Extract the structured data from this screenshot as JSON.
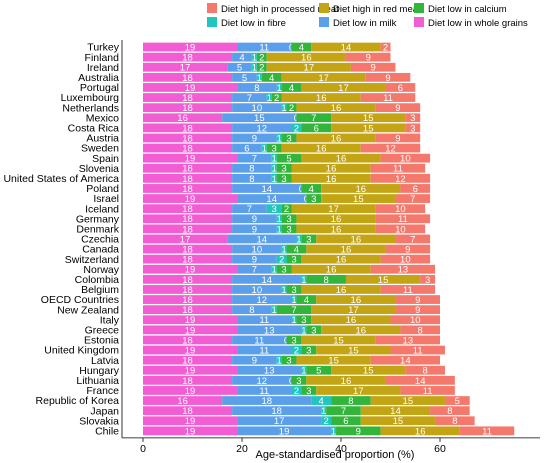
{
  "chart_data": {
    "type": "bar",
    "orientation": "horizontal",
    "stacked": true,
    "xlabel": "Age-standardised proportion (%)",
    "ylabel": "",
    "xlim": [
      0,
      78
    ],
    "xticks": [
      0,
      20,
      40,
      60
    ],
    "grid": false,
    "legend_position": "top",
    "categories": [
      "Turkey",
      "Finland",
      "Ireland",
      "Australia",
      "Portugal",
      "Luxembourg",
      "Netherlands",
      "Mexico",
      "Costa Rica",
      "Austria",
      "Sweden",
      "Spain",
      "Slovenia",
      "United States of America",
      "Poland",
      "Israel",
      "Iceland",
      "Germany",
      "Denmark",
      "Czechia",
      "Canada",
      "Switzerland",
      "Norway",
      "Colombia",
      "Belgium",
      "OECD Countries",
      "New Zealand",
      "Italy",
      "Greece",
      "Estonia",
      "United Kingdom",
      "Latvia",
      "Hungary",
      "Lithuania",
      "France",
      "Republic of Korea",
      "Japan",
      "Slovakia",
      "Chile"
    ],
    "series": [
      {
        "name": "Diet low in whole grains",
        "color": "#F25DD4",
        "values": [
          19,
          18,
          17,
          18,
          19,
          18,
          18,
          16,
          18,
          18,
          18,
          19,
          18,
          18,
          18,
          19,
          18,
          18,
          18,
          17,
          18,
          18,
          19,
          18,
          18,
          18,
          18,
          19,
          19,
          18,
          19,
          18,
          19,
          18,
          19,
          16,
          18,
          19,
          19
        ]
      },
      {
        "name": "Diet low in milk",
        "color": "#5B9FEA",
        "values": [
          11,
          4,
          5,
          5,
          8,
          7,
          10,
          15,
          12,
          9,
          6,
          7,
          8,
          8,
          14,
          14,
          7,
          9,
          9,
          14,
          10,
          9,
          7,
          14,
          10,
          12,
          8,
          11,
          13,
          11,
          11,
          9,
          13,
          12,
          11,
          18,
          18,
          17,
          19
        ]
      },
      {
        "name": "Diet low in fibre",
        "color": "#20C5BE",
        "values": [
          0,
          1,
          1,
          1,
          1,
          1,
          1,
          0,
          2,
          1,
          1,
          1,
          1,
          1,
          0,
          0,
          3,
          1,
          1,
          1,
          1,
          2,
          1,
          1,
          1,
          1,
          1,
          1,
          1,
          0,
          2,
          1,
          1,
          0,
          2,
          4,
          1,
          2,
          1
        ]
      },
      {
        "name": "Diet low in calcium",
        "color": "#33B43A",
        "values": [
          4,
          2,
          2,
          4,
          4,
          2,
          2,
          7,
          6,
          3,
          3,
          5,
          3,
          3,
          4,
          3,
          2,
          3,
          3,
          3,
          4,
          3,
          3,
          8,
          3,
          4,
          7,
          3,
          3,
          3,
          3,
          3,
          5,
          3,
          3,
          8,
          7,
          6,
          9
        ]
      },
      {
        "name": "Diet high in red meat",
        "color": "#C3A414",
        "values": [
          14,
          16,
          17,
          17,
          17,
          16,
          16,
          15,
          15,
          16,
          16,
          16,
          16,
          16,
          16,
          15,
          17,
          16,
          16,
          16,
          16,
          16,
          16,
          15,
          16,
          16,
          17,
          16,
          16,
          15,
          15,
          15,
          15,
          16,
          17,
          15,
          14,
          15,
          16
        ]
      },
      {
        "name": "Diet high in processed meat",
        "color": "#F5786C",
        "values": [
          2,
          9,
          9,
          9,
          6,
          11,
          9,
          3,
          3,
          9,
          12,
          10,
          11,
          12,
          6,
          7,
          10,
          11,
          10,
          7,
          9,
          10,
          13,
          3,
          11,
          9,
          9,
          10,
          8,
          13,
          11,
          14,
          8,
          14,
          11,
          5,
          8,
          8,
          11
        ]
      }
    ],
    "legend_order": [
      "Diet high in processed meat",
      "Diet high in red meat",
      "Diet low in calcium",
      "Diet low in fibre",
      "Diet low in milk",
      "Diet low in whole grains"
    ]
  }
}
